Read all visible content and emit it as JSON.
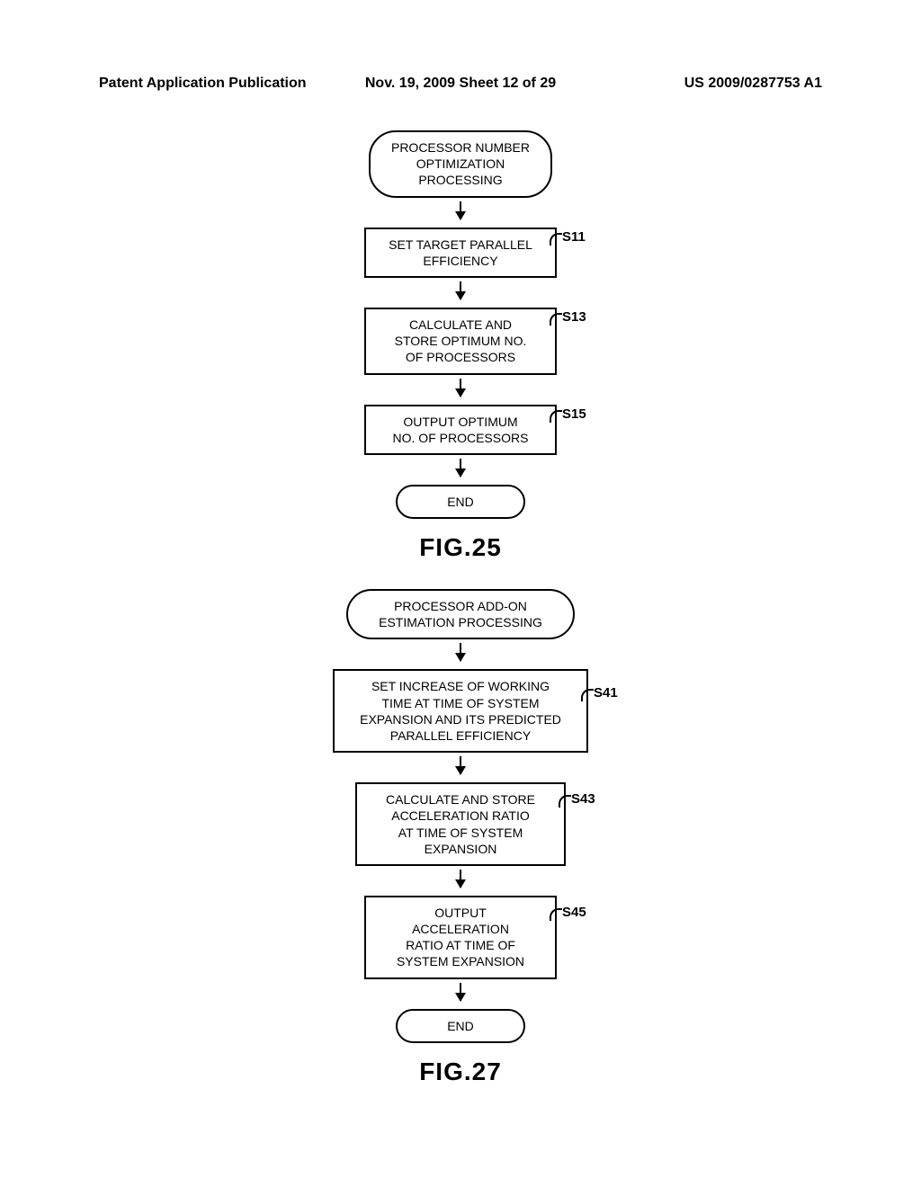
{
  "header": {
    "left": "Patent Application Publication",
    "center": "Nov. 19, 2009  Sheet 12 of 29",
    "right": "US 2009/0287753 A1"
  },
  "fig25": {
    "start": "PROCESSOR NUMBER\nOPTIMIZATION\nPROCESSING",
    "s11": {
      "label": "S11",
      "text": "SET TARGET PARALLEL\nEFFICIENCY"
    },
    "s13": {
      "label": "S13",
      "text": "CALCULATE AND\nSTORE OPTIMUM NO.\nOF PROCESSORS"
    },
    "s15": {
      "label": "S15",
      "text": "OUTPUT OPTIMUM\nNO. OF PROCESSORS"
    },
    "end": "END",
    "caption": "FIG.25"
  },
  "fig27": {
    "start": "PROCESSOR ADD-ON\nESTIMATION PROCESSING",
    "s41": {
      "label": "S41",
      "text": "SET INCREASE OF WORKING\nTIME AT TIME OF SYSTEM\nEXPANSION AND ITS PREDICTED\nPARALLEL EFFICIENCY"
    },
    "s43": {
      "label": "S43",
      "text": "CALCULATE AND STORE\nACCELERATION RATIO\nAT TIME OF SYSTEM\nEXPANSION"
    },
    "s45": {
      "label": "S45",
      "text": "OUTPUT\nACCELERATION\nRATIO AT TIME OF\nSYSTEM EXPANSION"
    },
    "end": "END",
    "caption": "FIG.27"
  },
  "layout": {
    "fig25_widths": {
      "start": 180,
      "s11": 190,
      "s13": 190,
      "s15": 190,
      "end": 120
    },
    "fig27_widths": {
      "start": 230,
      "s41": 260,
      "s43": 210,
      "s45": 190,
      "end": 120
    },
    "label_offset_25": 205,
    "label_offset_27_s41": 280,
    "label_offset_27_s43": 230,
    "label_offset_27_s45": 210
  },
  "colors": {
    "stroke": "#000000",
    "bg": "#ffffff"
  }
}
